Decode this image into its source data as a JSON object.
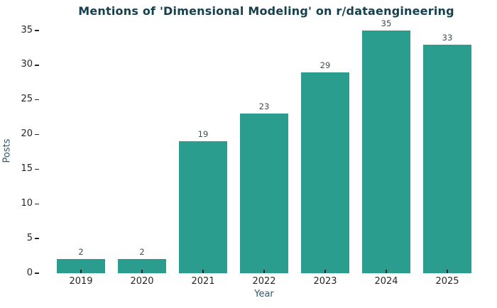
{
  "chart_data": {
    "type": "bar",
    "title": "Mentions of 'Dimensional Modeling' on r/dataengineering",
    "categories": [
      "2019",
      "2020",
      "2021",
      "2022",
      "2023",
      "2024",
      "2025"
    ],
    "values": [
      2,
      2,
      19,
      23,
      29,
      35,
      33
    ],
    "xlabel": "Year",
    "ylabel": "Posts",
    "ylim": [
      0,
      35
    ],
    "yticks": [
      0,
      5,
      10,
      15,
      20,
      25,
      30,
      35
    ],
    "grid": false,
    "legend_position": "none",
    "value_labels_shown": true
  },
  "colors": {
    "background": "#ffffff",
    "bar": "#2a9d8f",
    "title": "#16404e",
    "axis_label": "#31586b",
    "tick_label": "#262626",
    "value_label": "#3d4c56",
    "tick_mark": "#262626"
  }
}
